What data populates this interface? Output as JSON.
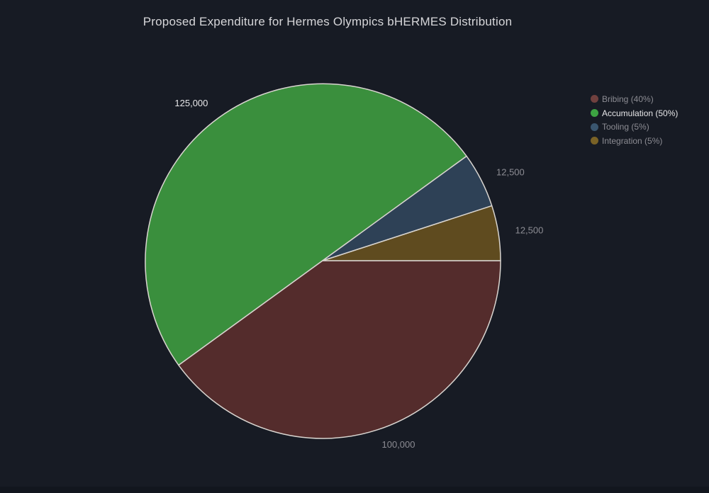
{
  "chart_data": {
    "type": "pie",
    "title": "Proposed Expenditure for Hermes Olympics bHERMES Distribution",
    "total": 250000,
    "legend_position": "right",
    "start_angle_deg": 36,
    "direction": "counterclockwise",
    "highlighted_slice": "Accumulation",
    "slices": [
      {
        "name": "Bribing",
        "legend_label": "Bribing (40%)",
        "value": 100000,
        "percent": 40,
        "value_label": "100,000",
        "color": "#542C2C",
        "legend_color": "#70403E",
        "label_color": "#8C8C93",
        "highlighted": false
      },
      {
        "name": "Accumulation",
        "legend_label": "Accumulation (50%)",
        "value": 125000,
        "percent": 50,
        "value_label": "125,000",
        "color": "#3A8F3D",
        "legend_color": "#3DA342",
        "label_color": "#E6E6E8",
        "highlighted": true
      },
      {
        "name": "Tooling",
        "legend_label": "Tooling (5%)",
        "value": 12500,
        "percent": 5,
        "value_label": "12,500",
        "color": "#2E4156",
        "legend_color": "#3A566F",
        "label_color": "#8C8C93",
        "highlighted": false
      },
      {
        "name": "Integration",
        "legend_label": "Integration (5%)",
        "value": 12500,
        "percent": 5,
        "value_label": "12,500",
        "color": "#5F4B1F",
        "legend_color": "#7A6226",
        "label_color": "#8C8C93",
        "highlighted": false
      }
    ],
    "colors": {
      "plot_background": "#171B24",
      "page_background": "#12161E",
      "title_text": "#D6D6D9",
      "muted_text": "#8C8C93",
      "bright_text": "#E6E6E8",
      "slice_outline": "#D9D5D0"
    }
  }
}
